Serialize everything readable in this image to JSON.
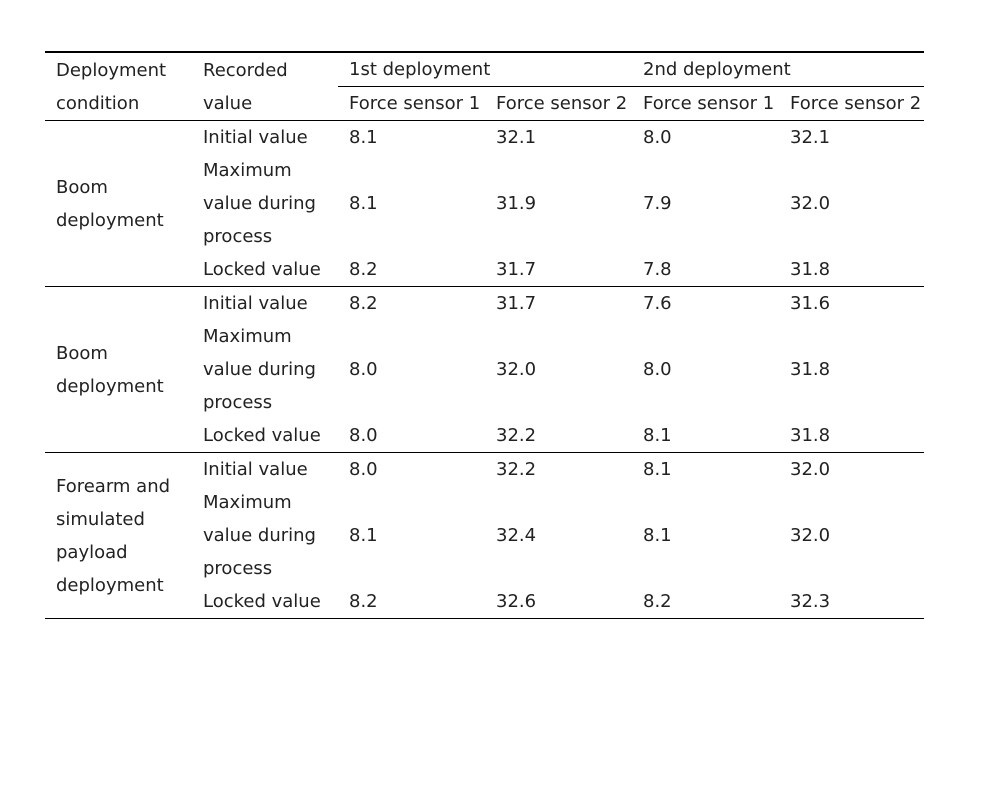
{
  "header": {
    "condition": "Deployment condition",
    "recorded": "Recorded value",
    "deployment1": "1st deployment",
    "deployment2": "2nd deployment",
    "sensor1": "Force sensor 1",
    "sensor2": "Force sensor 2"
  },
  "groups": [
    {
      "condition": "Boom deployment",
      "rows": [
        {
          "label": "Initial value",
          "values": [
            "8.1",
            "32.1",
            "8.0",
            "32.1"
          ]
        },
        {
          "label": "Maximum value during process",
          "values": [
            "8.1",
            "31.9",
            "7.9",
            "32.0"
          ]
        },
        {
          "label": "Locked value",
          "values": [
            "8.2",
            "31.7",
            "7.8",
            "31.8"
          ]
        }
      ]
    },
    {
      "condition": "Boom deployment",
      "rows": [
        {
          "label": "Initial value",
          "values": [
            "8.2",
            "31.7",
            "7.6",
            "31.6"
          ]
        },
        {
          "label": "Maximum value during process",
          "values": [
            "8.0",
            "32.0",
            "8.0",
            "31.8"
          ]
        },
        {
          "label": "Locked value",
          "values": [
            "8.0",
            "32.2",
            "8.1",
            "31.8"
          ]
        }
      ]
    },
    {
      "condition": "Forearm and simulated payload deployment",
      "rows": [
        {
          "label": "Initial value",
          "values": [
            "8.0",
            "32.2",
            "8.1",
            "32.0"
          ]
        },
        {
          "label": "Maximum value during process",
          "values": [
            "8.1",
            "32.4",
            "8.1",
            "32.0"
          ]
        },
        {
          "label": "Locked value",
          "values": [
            "8.2",
            "32.6",
            "8.2",
            "32.3"
          ]
        }
      ]
    }
  ]
}
